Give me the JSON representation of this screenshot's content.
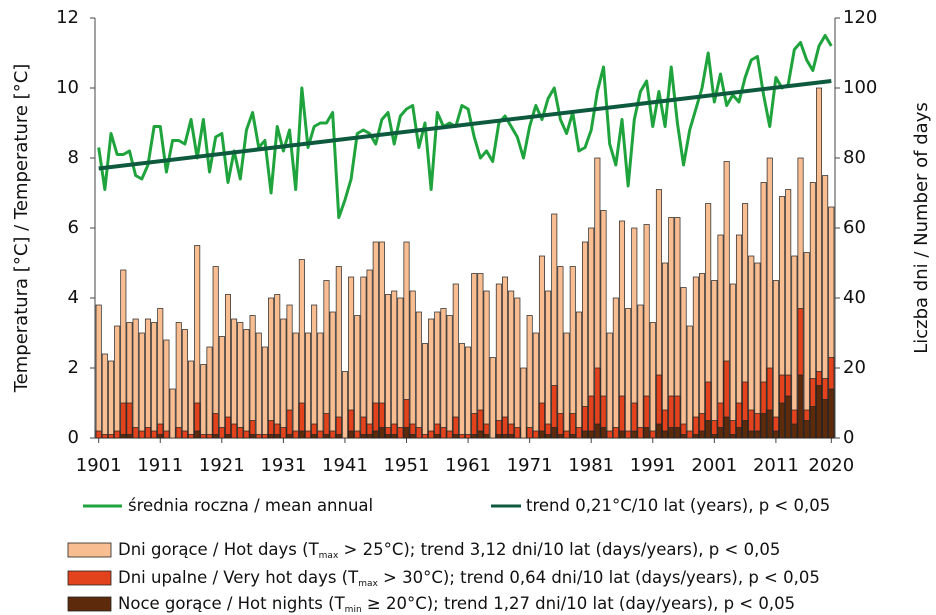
{
  "chart_data": {
    "type": "bar",
    "x": [
      1901,
      1902,
      1903,
      1904,
      1905,
      1906,
      1907,
      1908,
      1909,
      1910,
      1911,
      1912,
      1913,
      1914,
      1915,
      1916,
      1917,
      1918,
      1919,
      1920,
      1921,
      1922,
      1923,
      1924,
      1925,
      1926,
      1927,
      1928,
      1929,
      1930,
      1931,
      1932,
      1933,
      1934,
      1935,
      1936,
      1937,
      1938,
      1939,
      1940,
      1941,
      1942,
      1943,
      1944,
      1945,
      1946,
      1947,
      1948,
      1949,
      1950,
      1951,
      1952,
      1953,
      1954,
      1955,
      1956,
      1957,
      1958,
      1959,
      1960,
      1961,
      1962,
      1963,
      1964,
      1965,
      1966,
      1967,
      1968,
      1969,
      1970,
      1971,
      1972,
      1973,
      1974,
      1975,
      1976,
      1977,
      1978,
      1979,
      1980,
      1981,
      1982,
      1983,
      1984,
      1985,
      1986,
      1987,
      1988,
      1989,
      1990,
      1991,
      1992,
      1993,
      1994,
      1995,
      1996,
      1997,
      1998,
      1999,
      2000,
      2001,
      2002,
      2003,
      2004,
      2005,
      2006,
      2007,
      2008,
      2009,
      2010,
      2011,
      2012,
      2013,
      2014,
      2015,
      2016,
      2017,
      2018,
      2019,
      2020
    ],
    "xlim": [
      1900.4,
      2020.6
    ],
    "xticks": [
      1901,
      1911,
      1921,
      1931,
      1941,
      1951,
      1961,
      1971,
      1981,
      1991,
      2001,
      2011,
      2020
    ],
    "ylim": [
      0,
      12
    ],
    "yticks": [
      0,
      2,
      4,
      6,
      8,
      10,
      12
    ],
    "y2lim": [
      0,
      120
    ],
    "y2ticks": [
      0,
      20,
      40,
      60,
      80,
      100,
      120
    ],
    "y_label": "Temperatura [°C] / Temperature [°C]",
    "y2_label": "Liczba dni / Number of days",
    "series": [
      {
        "type": "bar",
        "axis": "y2",
        "color": "#f9bd92",
        "name": [
          "Dni gorące / Hot days (T",
          "max",
          " > 25°C); trend 3,12 dni/10 lat (days/years), p < 0,05"
        ],
        "values": [
          38,
          24,
          22,
          32,
          48,
          33,
          34,
          30,
          34,
          33,
          37,
          28,
          14,
          33,
          31,
          22,
          55,
          21,
          26,
          49,
          29,
          41,
          34,
          33,
          31,
          35,
          30,
          26,
          40,
          41,
          34,
          38,
          30,
          51,
          30,
          38,
          30,
          45,
          36,
          49,
          19,
          46,
          35,
          46,
          48,
          56,
          56,
          41,
          42,
          40,
          56,
          42,
          36,
          27,
          34,
          36,
          37,
          35,
          44,
          27,
          26,
          47,
          47,
          42,
          23,
          44,
          46,
          42,
          40,
          20,
          35,
          30,
          52,
          42,
          64,
          49,
          30,
          49,
          36,
          56,
          60,
          80,
          65,
          30,
          40,
          62,
          37,
          60,
          38,
          61,
          33,
          71,
          50,
          63,
          63,
          43,
          32,
          46,
          47,
          67,
          45,
          58,
          79,
          44,
          58,
          67,
          52,
          50,
          73,
          80,
          45,
          69,
          71,
          52,
          80,
          53,
          73,
          100,
          75,
          66
        ]
      },
      {
        "type": "bar",
        "axis": "y2",
        "color": "#e2431c",
        "name": [
          "Dni upalne / Very hot days (T",
          "max",
          " > 30°C); trend 0,64 dni/10 lat (days/years), p < 0,05"
        ],
        "values": [
          2,
          1,
          1,
          2,
          10,
          10,
          3,
          2,
          3,
          2,
          4,
          2,
          0,
          3,
          2,
          1,
          10,
          1,
          1,
          7,
          3,
          6,
          4,
          3,
          2,
          5,
          1,
          1,
          5,
          4,
          3,
          8,
          2,
          10,
          2,
          4,
          2,
          7,
          2,
          6,
          0,
          8,
          2,
          6,
          4,
          10,
          10,
          3,
          4,
          3,
          11,
          4,
          3,
          1,
          2,
          4,
          3,
          2,
          6,
          1,
          1,
          7,
          8,
          4,
          0,
          5,
          6,
          4,
          3,
          0,
          3,
          2,
          10,
          4,
          15,
          7,
          2,
          7,
          3,
          9,
          12,
          20,
          12,
          2,
          3,
          12,
          2,
          10,
          3,
          12,
          2,
          18,
          8,
          12,
          12,
          4,
          2,
          6,
          7,
          16,
          5,
          10,
          22,
          5,
          10,
          16,
          8,
          7,
          16,
          20,
          6,
          18,
          18,
          8,
          37,
          8,
          17,
          19,
          17,
          23
        ]
      },
      {
        "type": "bar",
        "axis": "y2",
        "color": "#5e2a0c",
        "name": [
          "Noce gorące / Hot nights (T",
          "min",
          " ≥ 20°C); trend 1,27 dni/10 lat (day/years), p < 0,05"
        ],
        "values": [
          0,
          0,
          0,
          0,
          1,
          1,
          0,
          0,
          0,
          0,
          1,
          0,
          0,
          0,
          0,
          0,
          2,
          0,
          0,
          1,
          0,
          1,
          0,
          0,
          0,
          1,
          0,
          0,
          1,
          1,
          0,
          1,
          0,
          2,
          0,
          1,
          0,
          1,
          0,
          1,
          0,
          2,
          0,
          1,
          1,
          2,
          3,
          1,
          1,
          0,
          3,
          1,
          0,
          0,
          0,
          1,
          0,
          0,
          1,
          0,
          0,
          1,
          2,
          1,
          0,
          1,
          1,
          1,
          0,
          0,
          0,
          0,
          2,
          1,
          3,
          1,
          0,
          1,
          0,
          2,
          2,
          4,
          3,
          0,
          0,
          2,
          0,
          2,
          0,
          3,
          0,
          4,
          2,
          3,
          3,
          1,
          0,
          1,
          2,
          5,
          1,
          3,
          6,
          1,
          3,
          5,
          2,
          2,
          7,
          8,
          2,
          10,
          12,
          4,
          18,
          5,
          9,
          15,
          11,
          14
        ]
      },
      {
        "type": "line",
        "axis": "y",
        "color": "#1fa33c",
        "name": [
          "średnia roczna / mean annual"
        ],
        "values": [
          8.3,
          7.1,
          8.7,
          8.1,
          8.1,
          8.2,
          7.5,
          7.4,
          7.8,
          8.9,
          8.9,
          7.6,
          8.5,
          8.5,
          8.4,
          9.1,
          8.0,
          9.1,
          7.6,
          8.6,
          8.7,
          7.3,
          8.2,
          7.4,
          8.8,
          9.3,
          8.3,
          8.5,
          7.0,
          8.9,
          8.2,
          8.8,
          7.1,
          10.0,
          8.3,
          8.9,
          9.0,
          9.0,
          9.3,
          6.3,
          6.8,
          7.4,
          8.7,
          8.8,
          8.7,
          8.4,
          9.1,
          9.3,
          8.4,
          9.2,
          9.4,
          9.5,
          8.3,
          9.0,
          7.1,
          9.3,
          8.9,
          9.0,
          8.9,
          9.5,
          9.4,
          8.6,
          8.0,
          8.2,
          7.9,
          9.0,
          9.2,
          8.9,
          8.6,
          8.0,
          8.9,
          9.5,
          9.1,
          9.7,
          10.0,
          9.1,
          8.7,
          9.3,
          8.2,
          8.3,
          8.8,
          9.9,
          10.6,
          8.4,
          7.8,
          9.1,
          7.2,
          9.1,
          9.9,
          10.2,
          8.9,
          9.9,
          8.9,
          10.6,
          9.0,
          7.8,
          8.8,
          9.4,
          10.0,
          11.0,
          9.6,
          10.4,
          9.5,
          9.8,
          9.6,
          10.3,
          10.8,
          10.9,
          9.8,
          8.9,
          10.3,
          10.0,
          10.1,
          11.1,
          11.3,
          10.8,
          10.5,
          11.2,
          11.5,
          11.2
        ]
      },
      {
        "type": "line",
        "axis": "y",
        "color": "#0e5a3e",
        "name": [
          "trend 0,21°C/10 lat (years), p < 0,05"
        ],
        "x": [
          1901,
          2020
        ],
        "values": [
          7.7,
          10.2
        ]
      }
    ]
  }
}
